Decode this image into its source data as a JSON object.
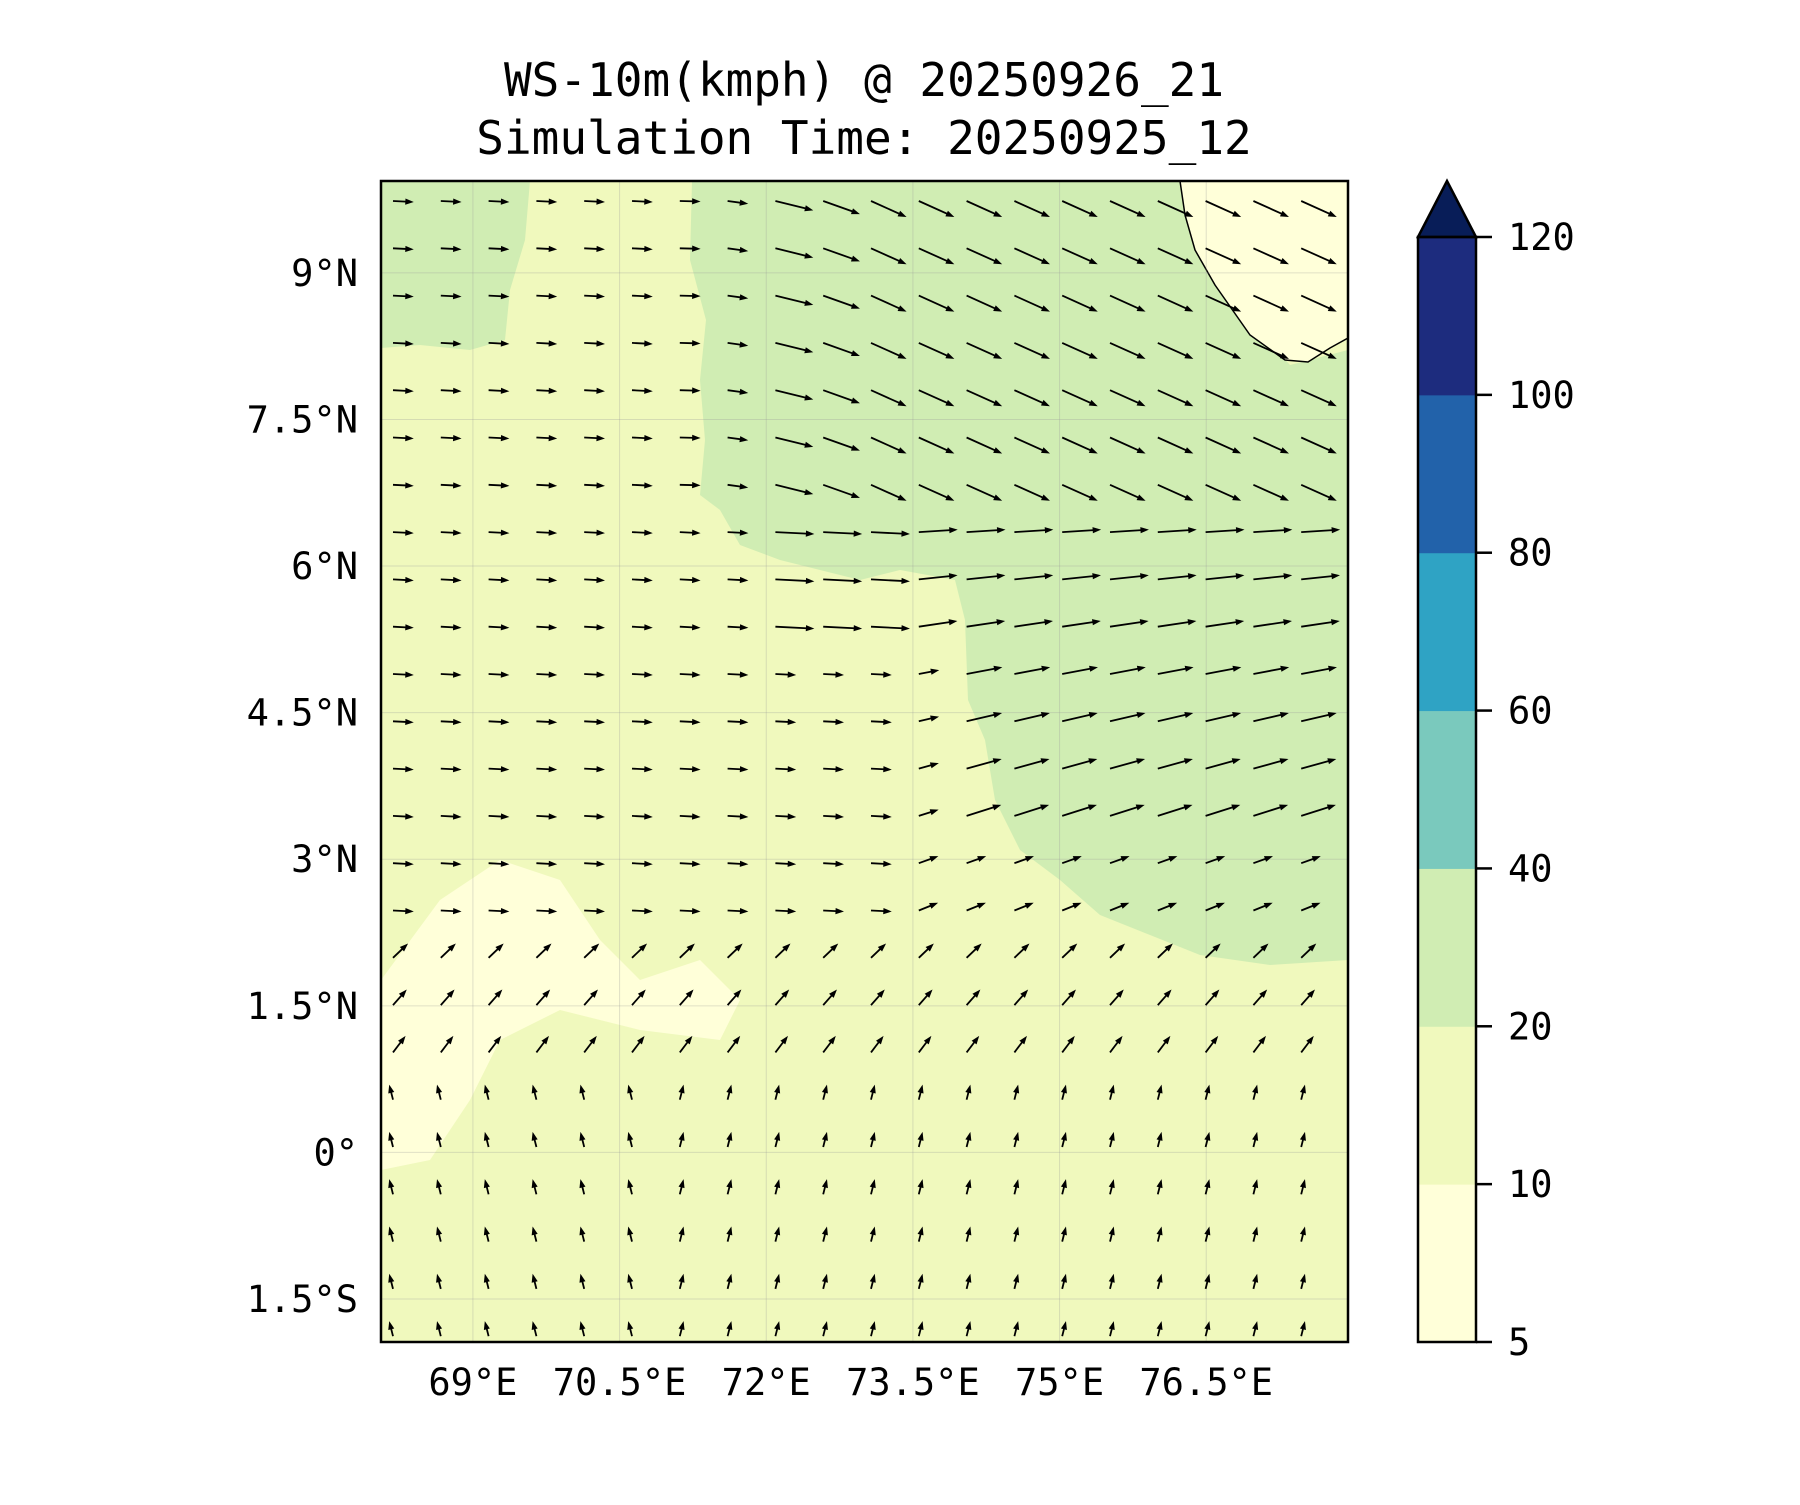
{
  "chart_data": {
    "type": "heatmap",
    "subtype": "filled-contour-with-wind-vectors",
    "title": "WS-10m(kmph) @ 20250926_21",
    "subtitle": "Simulation Time: 20250925_12",
    "xlabel": "",
    "ylabel": "",
    "xlim": [
      68.06,
      77.95
    ],
    "ylim": [
      -1.94,
      9.94
    ],
    "x_ticks": [
      69,
      70.5,
      72,
      73.5,
      75,
      76.5
    ],
    "x_tick_labels": [
      "69°E",
      "70.5°E",
      "72°E",
      "73.5°E",
      "75°E",
      "76.5°E"
    ],
    "y_ticks": [
      9,
      7.5,
      6,
      4.5,
      3,
      1.5,
      0,
      -1.5
    ],
    "y_tick_labels": [
      "9°N",
      "7.5°N",
      "6°N",
      "4.5°N",
      "3°N",
      "1.5°N",
      "0°",
      "1.5°S"
    ],
    "grid": true,
    "colorbar": {
      "levels": [
        5,
        10,
        20,
        40,
        60,
        80,
        100,
        120
      ],
      "tick_labels": [
        "5",
        "10",
        "20",
        "40",
        "60",
        "80",
        "100",
        "120"
      ],
      "colors": [
        "#ffffd9",
        "#f0f9bd",
        "#d0edb3",
        "#7ac9bd",
        "#2fa3c4",
        "#2262aa",
        "#1d2c7e"
      ],
      "extend_max_color": "#081d58",
      "placement": "right"
    },
    "observed_ranges": {
      "northeast_region": "20-40",
      "west_and_south": "10-20",
      "southwest_patches": "5-10"
    }
  }
}
